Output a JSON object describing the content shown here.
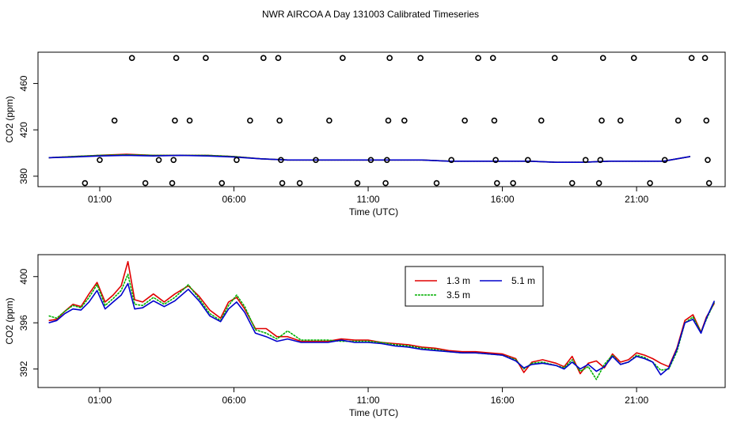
{
  "figure_title": "NWR AIRCOA A  Day 131003  Calibrated Timeseries",
  "colors": {
    "red": "#e00000",
    "green": "#00b000",
    "blue": "#0000cc"
  },
  "chart_data": [
    {
      "type": "scatter+line",
      "title": "",
      "xlabel": "Time (UTC)",
      "ylabel": "CO2 (ppm)",
      "xlim": [
        -1.3,
        24.3
      ],
      "ylim": [
        371,
        487
      ],
      "x_ticks": [
        1,
        6,
        11,
        16,
        21
      ],
      "x_tick_labels": [
        "01:00",
        "06:00",
        "11:00",
        "16:00",
        "21:00"
      ],
      "y_ticks": [
        380,
        420,
        460
      ],
      "y_tick_labels": [
        "380",
        "420",
        "460"
      ],
      "calibration_points": [
        {
          "x": 0.45,
          "y": 374
        },
        {
          "x": 1.0,
          "y": 394
        },
        {
          "x": 1.55,
          "y": 428
        },
        {
          "x": 2.2,
          "y": 482
        },
        {
          "x": 2.7,
          "y": 374
        },
        {
          "x": 3.2,
          "y": 394
        },
        {
          "x": 3.7,
          "y": 374
        },
        {
          "x": 3.75,
          "y": 394
        },
        {
          "x": 3.8,
          "y": 428
        },
        {
          "x": 3.85,
          "y": 482
        },
        {
          "x": 4.35,
          "y": 428
        },
        {
          "x": 4.95,
          "y": 482
        },
        {
          "x": 5.55,
          "y": 374
        },
        {
          "x": 6.1,
          "y": 394
        },
        {
          "x": 6.6,
          "y": 428
        },
        {
          "x": 7.1,
          "y": 482
        },
        {
          "x": 7.65,
          "y": 482
        },
        {
          "x": 7.7,
          "y": 428
        },
        {
          "x": 7.75,
          "y": 394
        },
        {
          "x": 7.8,
          "y": 374
        },
        {
          "x": 8.45,
          "y": 374
        },
        {
          "x": 9.05,
          "y": 394
        },
        {
          "x": 9.55,
          "y": 428
        },
        {
          "x": 10.05,
          "y": 482
        },
        {
          "x": 10.6,
          "y": 374
        },
        {
          "x": 11.1,
          "y": 394
        },
        {
          "x": 11.65,
          "y": 374
        },
        {
          "x": 11.7,
          "y": 394
        },
        {
          "x": 11.75,
          "y": 428
        },
        {
          "x": 11.8,
          "y": 482
        },
        {
          "x": 12.35,
          "y": 428
        },
        {
          "x": 12.95,
          "y": 482
        },
        {
          "x": 13.55,
          "y": 374
        },
        {
          "x": 14.1,
          "y": 394
        },
        {
          "x": 14.6,
          "y": 428
        },
        {
          "x": 15.1,
          "y": 482
        },
        {
          "x": 15.65,
          "y": 482
        },
        {
          "x": 15.7,
          "y": 428
        },
        {
          "x": 15.75,
          "y": 394
        },
        {
          "x": 15.8,
          "y": 374
        },
        {
          "x": 16.4,
          "y": 374
        },
        {
          "x": 16.95,
          "y": 394
        },
        {
          "x": 17.45,
          "y": 428
        },
        {
          "x": 17.95,
          "y": 482
        },
        {
          "x": 18.6,
          "y": 374
        },
        {
          "x": 19.1,
          "y": 394
        },
        {
          "x": 19.6,
          "y": 374
        },
        {
          "x": 19.65,
          "y": 394
        },
        {
          "x": 19.7,
          "y": 428
        },
        {
          "x": 19.75,
          "y": 482
        },
        {
          "x": 20.4,
          "y": 428
        },
        {
          "x": 20.9,
          "y": 482
        },
        {
          "x": 21.5,
          "y": 374
        },
        {
          "x": 22.05,
          "y": 394
        },
        {
          "x": 22.55,
          "y": 428
        },
        {
          "x": 23.05,
          "y": 482
        },
        {
          "x": 23.55,
          "y": 482
        },
        {
          "x": 23.6,
          "y": 428
        },
        {
          "x": 23.65,
          "y": 394
        },
        {
          "x": 23.7,
          "y": 374
        }
      ],
      "series": [
        {
          "name": "1.3 m",
          "color": "red",
          "x": [
            -0.9,
            0,
            1,
            2,
            3,
            4,
            5,
            6,
            7,
            8,
            9,
            10,
            11,
            12,
            13,
            14,
            15,
            16,
            17,
            18,
            19,
            20,
            21,
            22,
            23
          ],
          "y": [
            396,
            397,
            398,
            399,
            398,
            398,
            398,
            397,
            395,
            394,
            394,
            394,
            394,
            394,
            394,
            393,
            393,
            393,
            393,
            392,
            392,
            393,
            393,
            393,
            397
          ]
        },
        {
          "name": "3.5 m",
          "color": "green",
          "x": [
            -0.9,
            0,
            1,
            2,
            3,
            4,
            5,
            6,
            7,
            8,
            9,
            10,
            11,
            12,
            13,
            14,
            15,
            16,
            17,
            18,
            19,
            20,
            21,
            22,
            23
          ],
          "y": [
            396,
            397,
            398,
            398.5,
            398,
            398,
            398,
            397,
            395,
            394,
            394,
            394,
            394,
            394,
            394,
            393,
            393,
            393,
            393,
            392,
            392,
            393,
            393,
            393,
            397
          ]
        },
        {
          "name": "5.1 m",
          "color": "blue",
          "x": [
            -0.9,
            0,
            1,
            2,
            3,
            4,
            5,
            6,
            7,
            8,
            9,
            10,
            11,
            12,
            13,
            14,
            15,
            16,
            17,
            18,
            19,
            20,
            21,
            22,
            23
          ],
          "y": [
            396,
            396.5,
            397.5,
            398,
            397.5,
            398,
            397.5,
            396.5,
            395,
            394,
            394,
            394,
            394,
            394,
            394,
            393,
            393,
            393,
            393,
            392,
            392,
            393,
            393,
            393,
            397
          ]
        }
      ]
    },
    {
      "type": "line",
      "title": "",
      "xlabel": "Time (UTC)",
      "ylabel": "CO2 (ppm)",
      "xlim": [
        -1.3,
        24.3
      ],
      "ylim": [
        390.4,
        401.9
      ],
      "x_ticks": [
        1,
        6,
        11,
        16,
        21
      ],
      "x_tick_labels": [
        "01:00",
        "06:00",
        "11:00",
        "16:00",
        "21:00"
      ],
      "y_ticks": [
        392,
        396,
        400
      ],
      "y_tick_labels": [
        "392",
        "396",
        "400"
      ],
      "legend": {
        "position": "top-center",
        "entries": [
          "1.3 m",
          "5.1 m",
          "3.5 m"
        ]
      },
      "series": [
        {
          "name": "1.3 m",
          "color": "red",
          "x": [
            -0.9,
            -0.6,
            -0.3,
            0,
            0.3,
            0.6,
            0.9,
            1.2,
            1.5,
            1.8,
            2.05,
            2.3,
            2.6,
            3,
            3.4,
            3.8,
            4.3,
            4.7,
            5.1,
            5.5,
            5.8,
            6.1,
            6.4,
            6.8,
            7.2,
            7.6,
            8,
            8.5,
            9,
            9.5,
            10,
            10.5,
            11,
            11.5,
            12,
            12.5,
            13,
            13.5,
            14,
            14.5,
            15,
            15.5,
            16,
            16.5,
            16.8,
            17.1,
            17.5,
            18,
            18.3,
            18.6,
            18.9,
            19.2,
            19.5,
            19.8,
            20.1,
            20.4,
            20.7,
            21,
            21.3,
            21.6,
            21.9,
            22.2,
            22.5,
            22.8,
            23.1,
            23.4,
            23.6,
            23.9
          ],
          "y": [
            396.2,
            396.3,
            397,
            397.6,
            397.4,
            398.5,
            399.5,
            397.8,
            398.4,
            399.2,
            401.3,
            398,
            397.8,
            398.5,
            397.8,
            398.5,
            399.2,
            398.3,
            397.1,
            396.4,
            397.8,
            398.2,
            397.2,
            395.5,
            395.5,
            394.8,
            394.8,
            394.4,
            394.4,
            394.4,
            394.6,
            394.5,
            394.5,
            394.3,
            394.2,
            394.1,
            393.9,
            393.8,
            393.6,
            393.5,
            393.5,
            393.4,
            393.3,
            392.9,
            391.7,
            392.6,
            392.8,
            392.5,
            392.2,
            393.1,
            391.6,
            392.5,
            392.7,
            392.1,
            393.3,
            392.6,
            392.8,
            393.4,
            393.2,
            392.9,
            392.5,
            392.2,
            393.8,
            396.2,
            396.7,
            395.2,
            396.5,
            397.7
          ]
        },
        {
          "name": "3.5 m",
          "color": "green",
          "x": [
            -0.9,
            -0.6,
            -0.3,
            0,
            0.3,
            0.6,
            0.9,
            1.2,
            1.5,
            1.8,
            2.05,
            2.3,
            2.6,
            3,
            3.4,
            3.8,
            4.3,
            4.7,
            5.1,
            5.5,
            5.8,
            6.1,
            6.4,
            6.8,
            7.2,
            7.6,
            8,
            8.5,
            9,
            9.5,
            10,
            10.5,
            11,
            11.5,
            12,
            12.5,
            13,
            13.5,
            14,
            14.5,
            15,
            15.5,
            16,
            16.5,
            16.8,
            17.1,
            17.5,
            18,
            18.3,
            18.6,
            18.9,
            19.2,
            19.5,
            19.8,
            20.1,
            20.4,
            20.7,
            21,
            21.3,
            21.6,
            21.9,
            22.2,
            22.5,
            22.8,
            23.1,
            23.4,
            23.6,
            23.9
          ],
          "y": [
            396.6,
            396.4,
            397,
            397.5,
            397.3,
            398.2,
            399.3,
            397.5,
            398.1,
            398.8,
            400.2,
            397.6,
            397.5,
            398.2,
            397.6,
            398.2,
            399.3,
            398.1,
            396.8,
            396.2,
            397.5,
            398.4,
            397.4,
            395.4,
            395.1,
            394.6,
            395.3,
            394.5,
            394.5,
            394.5,
            394.4,
            394.4,
            394.4,
            394.3,
            394.1,
            394,
            393.8,
            393.7,
            393.5,
            393.4,
            393.4,
            393.3,
            393.2,
            392.8,
            392,
            392.5,
            392.6,
            392.3,
            392.1,
            392.8,
            391.8,
            392.2,
            391.1,
            392.4,
            393.2,
            392.4,
            392.6,
            393.2,
            393,
            392.6,
            391.9,
            392,
            393.5,
            396,
            396.5,
            395.2,
            396.3,
            397.8
          ]
        },
        {
          "name": "5.1 m",
          "color": "blue",
          "x": [
            -0.9,
            -0.6,
            -0.3,
            0,
            0.3,
            0.6,
            0.9,
            1.2,
            1.5,
            1.8,
            2.05,
            2.3,
            2.6,
            3,
            3.4,
            3.8,
            4.3,
            4.7,
            5.1,
            5.5,
            5.8,
            6.1,
            6.4,
            6.8,
            7.2,
            7.6,
            8,
            8.5,
            9,
            9.5,
            10,
            10.5,
            11,
            11.5,
            12,
            12.5,
            13,
            13.5,
            14,
            14.5,
            15,
            15.5,
            16,
            16.5,
            16.8,
            17.1,
            17.5,
            18,
            18.3,
            18.6,
            18.9,
            19.2,
            19.5,
            19.8,
            20.1,
            20.4,
            20.7,
            21,
            21.3,
            21.6,
            21.9,
            22.2,
            22.5,
            22.8,
            23.1,
            23.4,
            23.6,
            23.9
          ],
          "y": [
            396,
            396.2,
            396.8,
            397.2,
            397.1,
            397.8,
            398.8,
            397.2,
            397.8,
            398.4,
            399.4,
            397.2,
            397.3,
            397.9,
            397.4,
            397.9,
            398.9,
            397.9,
            396.6,
            396.1,
            397.2,
            397.8,
            396.9,
            395.1,
            394.8,
            394.4,
            394.6,
            394.3,
            394.3,
            394.3,
            394.5,
            394.3,
            394.3,
            394.2,
            394,
            393.9,
            393.7,
            393.6,
            393.5,
            393.4,
            393.4,
            393.3,
            393.2,
            392.7,
            392.1,
            392.4,
            392.5,
            392.3,
            392,
            392.6,
            392,
            392.4,
            391.8,
            392.2,
            393.1,
            392.4,
            392.6,
            393.1,
            392.9,
            392.6,
            391.5,
            392.1,
            393.7,
            396,
            396.3,
            395.1,
            396.4,
            397.9
          ]
        }
      ]
    }
  ]
}
